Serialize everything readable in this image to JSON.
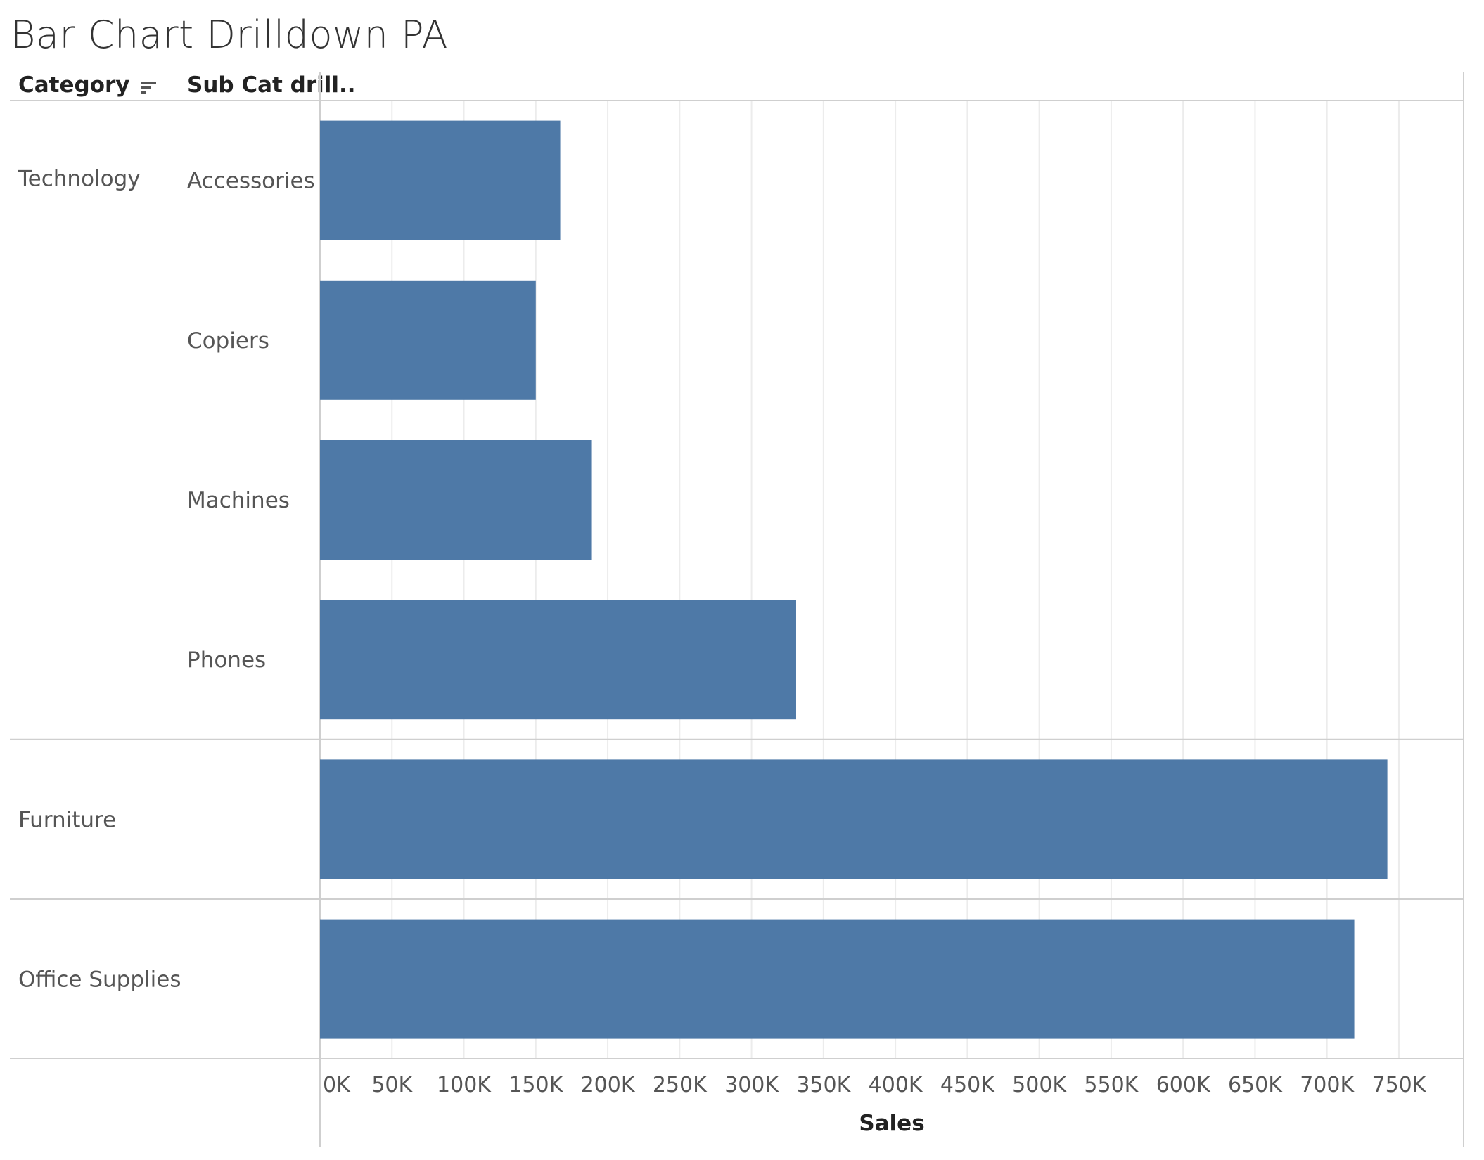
{
  "title": "Bar Chart Drilldown PA",
  "headers": {
    "category": "Category",
    "subcategory": "Sub Cat drill.."
  },
  "icons": {
    "sort": "sort-descending-icon"
  },
  "colors": {
    "bar": "#4e79a7",
    "gridline": "#ececec",
    "divider": "#cfcfcf"
  },
  "chart_data": {
    "type": "bar",
    "orientation": "horizontal",
    "title": "Bar Chart Drilldown PA",
    "xlabel": "Sales",
    "ylabel": "",
    "xlim": [
      0,
      795000
    ],
    "x_ticks": [
      "0K",
      "50K",
      "100K",
      "150K",
      "200K",
      "250K",
      "300K",
      "350K",
      "400K",
      "450K",
      "500K",
      "550K",
      "600K",
      "650K",
      "700K",
      "750K"
    ],
    "rows": [
      {
        "category": "Technology",
        "subcategory": "Accessories",
        "value": 167000
      },
      {
        "category": "Technology",
        "subcategory": "Copiers",
        "value": 150000
      },
      {
        "category": "Technology",
        "subcategory": "Machines",
        "value": 189000
      },
      {
        "category": "Technology",
        "subcategory": "Phones",
        "value": 331000
      },
      {
        "category": "Furniture",
        "subcategory": "",
        "value": 742000
      },
      {
        "category": "Office Supplies",
        "subcategory": "",
        "value": 719000
      }
    ],
    "grid": "vertical"
  }
}
